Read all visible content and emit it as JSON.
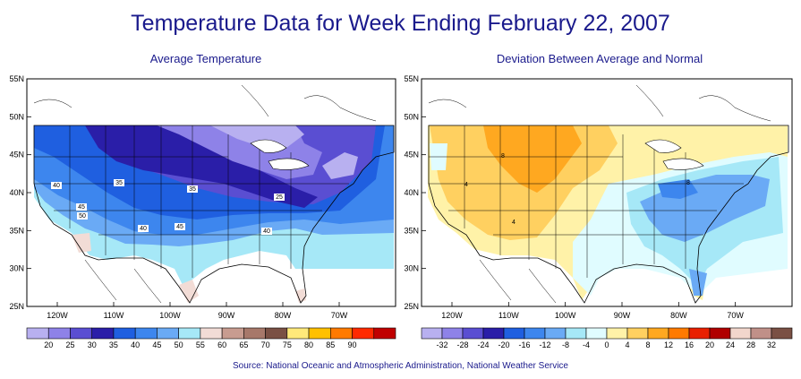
{
  "title": "Temperature Data for Week Ending February 22, 2007",
  "left_map": {
    "subtitle": "Average Temperature",
    "lat_ticks": [
      "55N",
      "50N",
      "45N",
      "40N",
      "35N",
      "30N",
      "25N"
    ],
    "lon_ticks": [
      "120W",
      "110W",
      "100W",
      "90W",
      "80W",
      "70W"
    ],
    "contour_labels": [
      "40",
      "35",
      "35",
      "25",
      "45",
      "50",
      "40",
      "45",
      "40"
    ],
    "legend_labels": [
      "20",
      "25",
      "30",
      "35",
      "40",
      "45",
      "50",
      "55",
      "60",
      "65",
      "70",
      "75",
      "80",
      "85",
      "90"
    ],
    "legend_colors": [
      "#b8b0f0",
      "#8e82e8",
      "#5a4ed2",
      "#2a1ea8",
      "#1f5fe0",
      "#3d86ee",
      "#6aaaf5",
      "#a6e8f7",
      "#f2dcd6",
      "#c89c90",
      "#a7786a",
      "#7a5044",
      "#ffe97a",
      "#ffc000",
      "#ff7a00",
      "#ff2a00",
      "#c00000"
    ]
  },
  "right_map": {
    "subtitle": "Deviation Between Average and Normal",
    "lat_ticks": [
      "55N",
      "50N",
      "45N",
      "40N",
      "35N",
      "30N",
      "25N"
    ],
    "lon_ticks": [
      "120W",
      "110W",
      "100W",
      "90W",
      "80W",
      "70W"
    ],
    "contour_labels": [
      "8",
      "4",
      "4",
      "8"
    ],
    "legend_labels": [
      "-32",
      "-28",
      "-24",
      "-20",
      "-16",
      "-12",
      "-8",
      "-4",
      "0",
      "4",
      "8",
      "12",
      "16",
      "20",
      "24",
      "28",
      "32"
    ],
    "legend_colors": [
      "#b8b0f0",
      "#8e82e8",
      "#5a4ed2",
      "#2a1ea8",
      "#1f5fe0",
      "#3d86ee",
      "#6aaaf5",
      "#a6e8f7",
      "#e0fcff",
      "#fff2a8",
      "#ffd060",
      "#ffa820",
      "#ff7a00",
      "#e82000",
      "#b00000",
      "#f2d6cc",
      "#c09088",
      "#7a5044"
    ]
  },
  "source": "Source:  National Oceanic and Atmospheric Administration, National Weather Service"
}
